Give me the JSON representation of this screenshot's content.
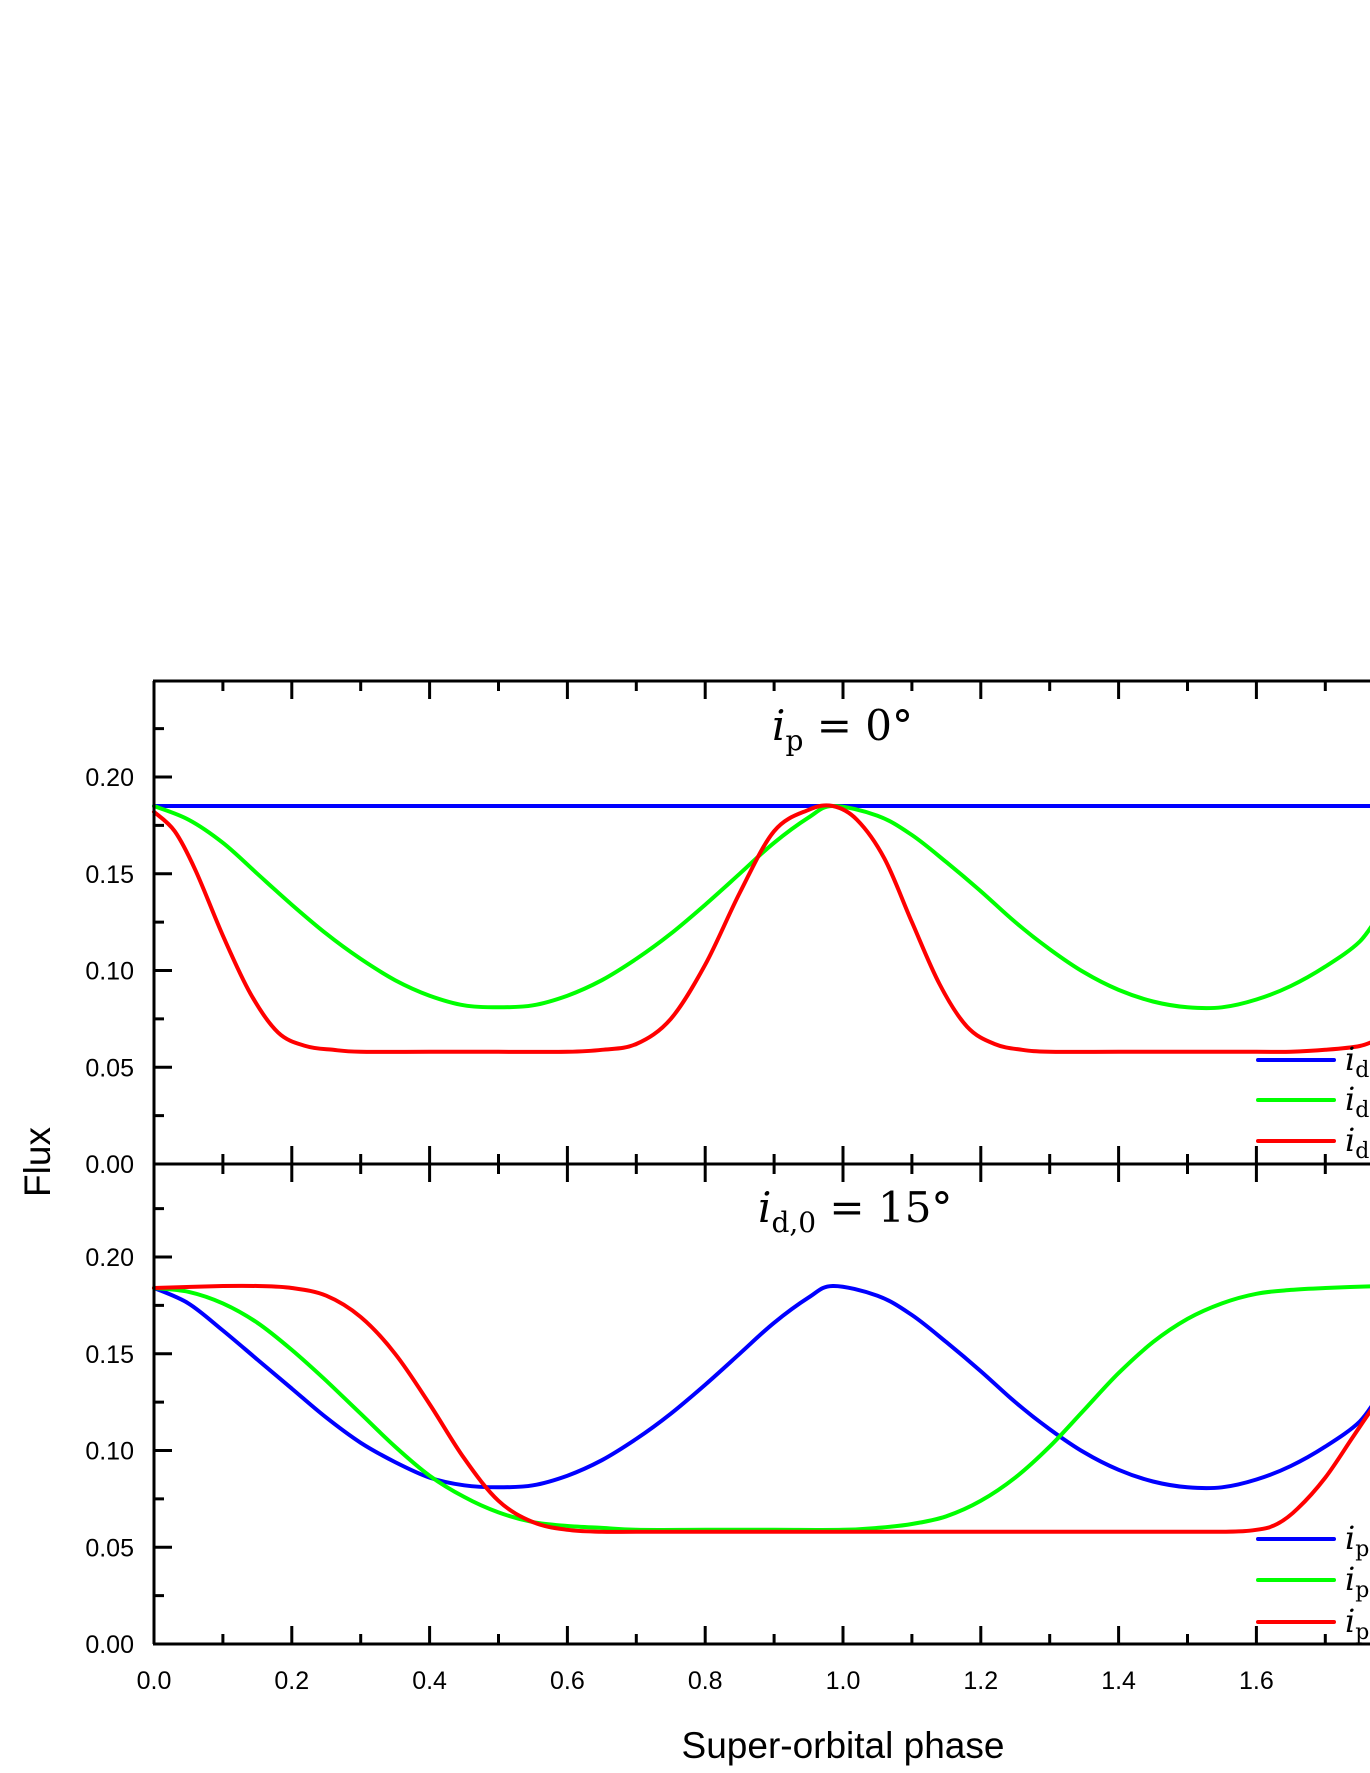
{
  "chart_data": [
    {
      "type": "line",
      "panel": "top",
      "title": "i_p = 0°",
      "xlabel": "Super-orbital phase",
      "ylabel": "Flux",
      "xlim": [
        0.0,
        1.8
      ],
      "ylim": [
        0.0,
        0.25
      ],
      "xticks": [
        "0.0",
        "0.2",
        "0.4",
        "0.6",
        "0.8",
        "1.0",
        "1.2",
        "1.4",
        "1.6"
      ],
      "yticks": [
        "0.00",
        "0.05",
        "0.10",
        "0.15",
        "0.20"
      ],
      "grid": false,
      "legend_position": "lower right (clipped)",
      "series": [
        {
          "name": "i_d…",
          "color": "#0000ff",
          "x": [
            0.0,
            0.2,
            0.4,
            0.6,
            0.8,
            1.0,
            1.2,
            1.4,
            1.6,
            1.8
          ],
          "y": [
            0.185,
            0.185,
            0.185,
            0.185,
            0.185,
            0.185,
            0.185,
            0.185,
            0.185,
            0.185
          ]
        },
        {
          "name": "i_d…",
          "color": "#00ff00",
          "x": [
            0.0,
            0.05,
            0.1,
            0.15,
            0.2,
            0.25,
            0.3,
            0.35,
            0.4,
            0.45,
            0.5,
            0.55,
            0.6,
            0.65,
            0.7,
            0.75,
            0.8,
            0.85,
            0.9,
            0.95,
            0.985,
            1.05,
            1.1,
            1.15,
            1.2,
            1.25,
            1.3,
            1.35,
            1.4,
            1.45,
            1.5,
            1.55,
            1.6,
            1.65,
            1.7,
            1.75,
            1.78
          ],
          "y": [
            0.185,
            0.178,
            0.166,
            0.15,
            0.134,
            0.119,
            0.106,
            0.095,
            0.087,
            0.082,
            0.081,
            0.082,
            0.087,
            0.095,
            0.106,
            0.119,
            0.134,
            0.15,
            0.166,
            0.179,
            0.185,
            0.18,
            0.17,
            0.156,
            0.141,
            0.125,
            0.111,
            0.099,
            0.09,
            0.084,
            0.081,
            0.081,
            0.085,
            0.092,
            0.102,
            0.115,
            0.13
          ]
        },
        {
          "name": "i_d…",
          "color": "#ff0000",
          "x": [
            0.0,
            0.03,
            0.06,
            0.1,
            0.14,
            0.18,
            0.22,
            0.26,
            0.3,
            0.4,
            0.5,
            0.6,
            0.65,
            0.7,
            0.75,
            0.8,
            0.85,
            0.9,
            0.95,
            0.985,
            1.02,
            1.06,
            1.1,
            1.14,
            1.18,
            1.22,
            1.26,
            1.3,
            1.4,
            1.5,
            1.6,
            1.65,
            1.7,
            1.75,
            1.78
          ],
          "y": [
            0.182,
            0.172,
            0.152,
            0.118,
            0.088,
            0.068,
            0.061,
            0.059,
            0.058,
            0.058,
            0.058,
            0.058,
            0.059,
            0.062,
            0.075,
            0.103,
            0.14,
            0.172,
            0.183,
            0.185,
            0.178,
            0.158,
            0.125,
            0.093,
            0.071,
            0.062,
            0.059,
            0.058,
            0.058,
            0.058,
            0.058,
            0.058,
            0.059,
            0.061,
            0.065
          ]
        }
      ]
    },
    {
      "type": "line",
      "panel": "bottom",
      "title": "i_d,0 = 15°",
      "xlabel": "Super-orbital phase",
      "ylabel": "Flux",
      "xlim": [
        0.0,
        1.8
      ],
      "ylim": [
        0.0,
        0.25
      ],
      "xticks": [
        "0.0",
        "0.2",
        "0.4",
        "0.6",
        "0.8",
        "1.0",
        "1.2",
        "1.4",
        "1.6"
      ],
      "yticks": [
        "0.00",
        "0.05",
        "0.10",
        "0.15",
        "0.20"
      ],
      "grid": false,
      "legend_position": "lower right (clipped)",
      "series": [
        {
          "name": "i_p…",
          "color": "#0000ff",
          "x": [
            0.0,
            0.05,
            0.1,
            0.15,
            0.2,
            0.25,
            0.3,
            0.35,
            0.4,
            0.45,
            0.5,
            0.55,
            0.6,
            0.65,
            0.7,
            0.75,
            0.8,
            0.85,
            0.9,
            0.95,
            0.985,
            1.05,
            1.1,
            1.15,
            1.2,
            1.25,
            1.3,
            1.35,
            1.4,
            1.45,
            1.5,
            1.55,
            1.6,
            1.65,
            1.7,
            1.75,
            1.78
          ],
          "y": [
            0.184,
            0.176,
            0.162,
            0.147,
            0.132,
            0.117,
            0.104,
            0.094,
            0.086,
            0.082,
            0.081,
            0.082,
            0.087,
            0.095,
            0.106,
            0.119,
            0.134,
            0.15,
            0.166,
            0.179,
            0.185,
            0.18,
            0.17,
            0.156,
            0.141,
            0.125,
            0.111,
            0.099,
            0.09,
            0.084,
            0.081,
            0.081,
            0.085,
            0.092,
            0.102,
            0.115,
            0.13
          ]
        },
        {
          "name": "i_p…",
          "color": "#00ff00",
          "x": [
            0.0,
            0.05,
            0.1,
            0.15,
            0.2,
            0.25,
            0.3,
            0.35,
            0.4,
            0.45,
            0.5,
            0.55,
            0.6,
            0.65,
            0.7,
            0.8,
            0.9,
            1.0,
            1.05,
            1.1,
            1.15,
            1.2,
            1.25,
            1.3,
            1.35,
            1.4,
            1.45,
            1.5,
            1.55,
            1.6,
            1.65,
            1.7,
            1.78
          ],
          "y": [
            0.184,
            0.182,
            0.176,
            0.166,
            0.152,
            0.136,
            0.119,
            0.102,
            0.087,
            0.076,
            0.068,
            0.063,
            0.061,
            0.06,
            0.059,
            0.059,
            0.059,
            0.059,
            0.06,
            0.062,
            0.066,
            0.074,
            0.086,
            0.102,
            0.121,
            0.14,
            0.156,
            0.168,
            0.176,
            0.181,
            0.183,
            0.184,
            0.185
          ]
        },
        {
          "name": "i_p…",
          "color": "#ff0000",
          "x": [
            0.0,
            0.1,
            0.15,
            0.2,
            0.25,
            0.3,
            0.35,
            0.4,
            0.45,
            0.5,
            0.55,
            0.6,
            0.65,
            0.7,
            0.8,
            1.0,
            1.2,
            1.4,
            1.55,
            1.6,
            1.63,
            1.66,
            1.7,
            1.74,
            1.78
          ],
          "y": [
            0.184,
            0.185,
            0.185,
            0.184,
            0.18,
            0.169,
            0.15,
            0.124,
            0.096,
            0.074,
            0.063,
            0.059,
            0.058,
            0.058,
            0.058,
            0.058,
            0.058,
            0.058,
            0.058,
            0.059,
            0.062,
            0.07,
            0.086,
            0.107,
            0.128
          ]
        }
      ]
    }
  ],
  "labels": {
    "panel_top_title": "i",
    "panel_top_sub": "p",
    "panel_top_rest": " = 0°",
    "panel_bottom_title": "i",
    "panel_bottom_sub": "d,0",
    "panel_bottom_rest": " = 15°",
    "xlabel": "Super-orbital phase",
    "ylabel": "Flux",
    "legend_top": [
      {
        "main": "i",
        "sub": "d"
      },
      {
        "main": "i",
        "sub": "d"
      },
      {
        "main": "i",
        "sub": "d"
      }
    ],
    "legend_bottom": [
      {
        "main": "i",
        "sub": "p"
      },
      {
        "main": "i",
        "sub": "p"
      },
      {
        "main": "i",
        "sub": "p"
      }
    ]
  }
}
